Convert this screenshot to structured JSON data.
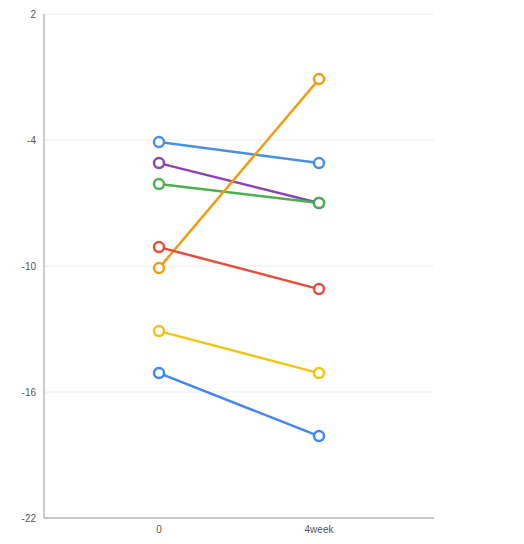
{
  "chart_data": {
    "type": "line",
    "categories": [
      "0",
      "4week"
    ],
    "series": [
      {
        "color": "#4a90e2",
        "values": [
          -4.1,
          -5.1
        ]
      },
      {
        "color": "#8e44ad",
        "values": [
          -5.1,
          -7
        ]
      },
      {
        "color": "#4caf50",
        "values": [
          -6.1,
          -7
        ]
      },
      {
        "color": "#f39c12",
        "values": [
          -10.1,
          -1.1
        ]
      },
      {
        "color": "#e74c3c",
        "values": [
          -9.1,
          -11.1
        ]
      },
      {
        "color": "#f1c40f",
        "values": [
          -13.1,
          -15.1
        ]
      },
      {
        "color": "#4285f4",
        "values": [
          -15.1,
          -18.1
        ]
      }
    ],
    "ylim": [
      -22,
      2
    ],
    "yticks": [
      -22,
      -16,
      -10,
      -4,
      2
    ],
    "grid": true,
    "marker": "circle"
  }
}
